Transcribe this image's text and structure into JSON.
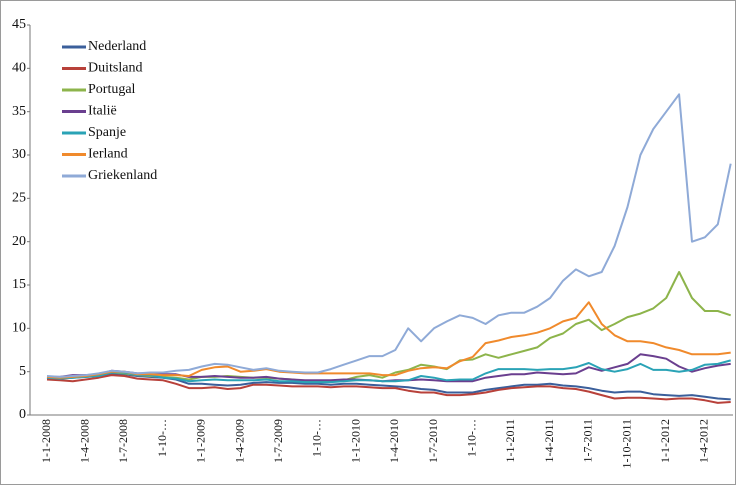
{
  "chart_data": {
    "type": "line",
    "categories": [
      "1-1-2008",
      null,
      null,
      "1-4-2008",
      null,
      null,
      "1-7-2008",
      null,
      null,
      "1-10-…",
      null,
      null,
      "1-1-2009",
      null,
      null,
      "1-4-2009",
      null,
      null,
      "1-7-2009",
      null,
      null,
      "1-10-…",
      null,
      null,
      "1-1-2010",
      null,
      null,
      "1-4-2010",
      null,
      null,
      "1-7-2010",
      null,
      null,
      "1-10-…",
      null,
      null,
      "1-1-2011",
      null,
      null,
      "1-4-2011",
      null,
      null,
      "1-7-2011",
      null,
      null,
      "1-10-2011",
      null,
      null,
      "1-1-2012",
      null,
      null,
      "1-4-2012",
      null,
      null
    ],
    "series": [
      {
        "name": "Nederland",
        "color": "#3b5f9b",
        "values": [
          4.3,
          4.2,
          4.3,
          4.4,
          4.5,
          4.8,
          4.7,
          4.5,
          4.4,
          4.3,
          4.1,
          3.6,
          3.6,
          3.5,
          3.4,
          3.5,
          3.7,
          3.8,
          3.7,
          3.7,
          3.6,
          3.6,
          3.5,
          3.6,
          3.6,
          3.5,
          3.4,
          3.3,
          3.2,
          3.0,
          2.9,
          2.6,
          2.6,
          2.6,
          2.9,
          3.1,
          3.3,
          3.5,
          3.5,
          3.6,
          3.4,
          3.3,
          3.1,
          2.8,
          2.6,
          2.7,
          2.7,
          2.4,
          2.3,
          2.2,
          2.3,
          2.1,
          1.9,
          1.8
        ]
      },
      {
        "name": "Duitsland",
        "color": "#b8413a",
        "values": [
          4.1,
          4.0,
          3.9,
          4.1,
          4.3,
          4.6,
          4.5,
          4.2,
          4.1,
          4.0,
          3.6,
          3.1,
          3.1,
          3.2,
          3.0,
          3.1,
          3.5,
          3.5,
          3.4,
          3.3,
          3.3,
          3.3,
          3.2,
          3.3,
          3.3,
          3.2,
          3.1,
          3.1,
          2.8,
          2.6,
          2.6,
          2.3,
          2.3,
          2.4,
          2.6,
          2.9,
          3.1,
          3.2,
          3.3,
          3.3,
          3.1,
          3.0,
          2.7,
          2.3,
          1.9,
          2.0,
          2.0,
          1.9,
          1.8,
          1.9,
          1.9,
          1.7,
          1.4,
          1.5
        ]
      },
      {
        "name": "Portugal",
        "color": "#8db44b",
        "values": [
          4.4,
          4.3,
          4.4,
          4.5,
          4.6,
          4.9,
          4.8,
          4.6,
          4.5,
          4.4,
          4.3,
          4.1,
          4.4,
          4.4,
          4.5,
          4.4,
          4.3,
          4.3,
          4.2,
          4.1,
          3.9,
          3.9,
          3.9,
          4.0,
          4.4,
          4.6,
          4.3,
          4.9,
          5.2,
          5.8,
          5.6,
          5.3,
          6.3,
          6.4,
          7.0,
          6.6,
          7.0,
          7.4,
          7.8,
          8.9,
          9.4,
          10.5,
          11.0,
          9.8,
          10.5,
          11.3,
          11.7,
          12.3,
          13.5,
          16.5,
          13.5,
          12.0,
          12.0,
          11.5
        ]
      },
      {
        "name": "Italië",
        "color": "#6a3f8f",
        "values": [
          4.4,
          4.4,
          4.6,
          4.6,
          4.7,
          5.1,
          5.0,
          4.8,
          4.8,
          4.7,
          4.7,
          4.4,
          4.4,
          4.5,
          4.4,
          4.3,
          4.3,
          4.4,
          4.2,
          4.1,
          4.0,
          4.0,
          4.0,
          4.1,
          4.1,
          4.0,
          3.9,
          4.0,
          4.0,
          4.1,
          4.0,
          3.9,
          3.9,
          3.9,
          4.3,
          4.5,
          4.7,
          4.7,
          4.9,
          4.8,
          4.7,
          4.8,
          5.5,
          5.1,
          5.5,
          5.9,
          7.0,
          6.8,
          6.5,
          5.6,
          5.0,
          5.4,
          5.7,
          5.9
        ]
      },
      {
        "name": "Spanje",
        "color": "#2aa3b6",
        "values": [
          4.3,
          4.2,
          4.3,
          4.4,
          4.5,
          4.9,
          4.9,
          4.6,
          4.6,
          4.3,
          4.2,
          3.9,
          4.0,
          4.1,
          4.0,
          4.0,
          4.0,
          4.1,
          3.9,
          3.9,
          3.8,
          3.8,
          3.8,
          3.9,
          4.0,
          4.0,
          3.9,
          3.9,
          4.0,
          4.5,
          4.3,
          4.0,
          4.1,
          4.1,
          4.8,
          5.3,
          5.3,
          5.3,
          5.2,
          5.3,
          5.3,
          5.5,
          6.0,
          5.3,
          5.0,
          5.3,
          5.9,
          5.2,
          5.2,
          5.0,
          5.2,
          5.8,
          5.9,
          6.3
        ]
      },
      {
        "name": "Ierland",
        "color": "#f08a2c",
        "values": [
          4.4,
          4.3,
          4.4,
          4.5,
          4.7,
          5.0,
          5.0,
          4.7,
          4.7,
          4.6,
          4.6,
          4.5,
          5.2,
          5.5,
          5.6,
          5.0,
          5.1,
          5.3,
          5.0,
          4.9,
          4.8,
          4.8,
          4.8,
          4.8,
          4.8,
          4.8,
          4.6,
          4.6,
          5.1,
          5.4,
          5.5,
          5.4,
          6.2,
          6.7,
          8.3,
          8.6,
          9.0,
          9.2,
          9.5,
          10.0,
          10.8,
          11.2,
          13.0,
          10.5,
          9.2,
          8.5,
          8.5,
          8.3,
          7.8,
          7.5,
          7.0,
          7.0,
          7.0,
          7.2
        ]
      },
      {
        "name": "Griekenland",
        "color": "#8faad7",
        "values": [
          4.5,
          4.4,
          4.5,
          4.6,
          4.8,
          5.1,
          5.0,
          4.8,
          4.9,
          4.9,
          5.1,
          5.2,
          5.6,
          5.9,
          5.8,
          5.5,
          5.2,
          5.4,
          5.1,
          5.0,
          4.9,
          4.9,
          5.3,
          5.8,
          6.3,
          6.8,
          6.8,
          7.5,
          10.0,
          8.5,
          10.0,
          10.8,
          11.5,
          11.2,
          10.5,
          11.5,
          11.8,
          11.8,
          12.5,
          13.5,
          15.5,
          16.8,
          16.0,
          16.5,
          19.5,
          24.0,
          30.0,
          33.0,
          35.0,
          37.0,
          20.0,
          20.5,
          22.0,
          29.0
        ]
      }
    ],
    "ylim": [
      0,
      45
    ],
    "yticks": [
      0,
      5,
      10,
      15,
      20,
      25,
      30,
      35,
      40,
      45
    ],
    "grid": false,
    "legend": "top-left"
  }
}
